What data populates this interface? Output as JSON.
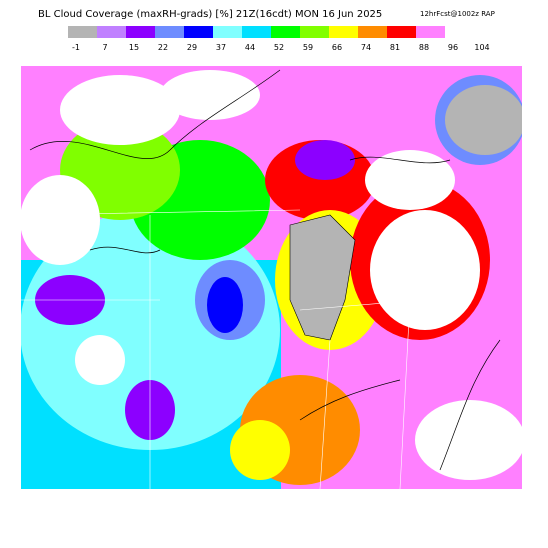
{
  "title": "BL Cloud Coverage (maxRH-grads) [%] 21Z(16cdt) MON 16 Jun 2025",
  "subtitle": "12hrFcst@1002z RAP",
  "colorbar": {
    "labels": [
      -1,
      7,
      15,
      22,
      29,
      37,
      44,
      52,
      59,
      66,
      74,
      81,
      88,
      96,
      104
    ],
    "colors": [
      "#b4b4b4",
      "#c080ff",
      "#8c00ff",
      "#6e8cff",
      "#0000ff",
      "#80ffff",
      "#00e0ff",
      "#00ff00",
      "#80ff00",
      "#ffff00",
      "#ff8c00",
      "#ff0000",
      "#ff80ff",
      "#ffffff"
    ]
  }
}
